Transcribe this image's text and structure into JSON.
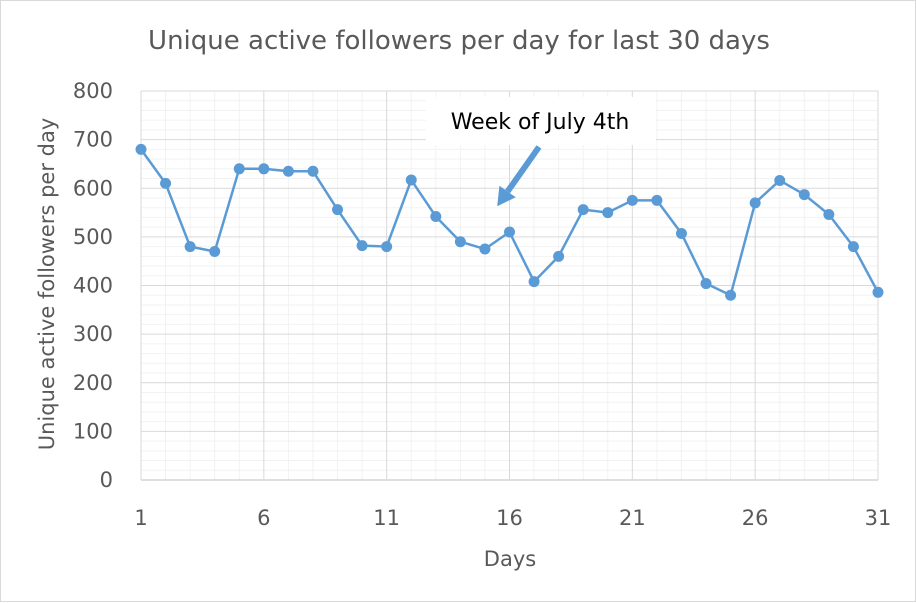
{
  "chart_data": {
    "type": "line",
    "title": "Unique active followers per day for last 30 days",
    "xlabel": "Days",
    "ylabel": "Unique active followers per day",
    "xlim": [
      1,
      31
    ],
    "ylim": [
      0,
      800
    ],
    "x_ticks": [
      1,
      6,
      11,
      16,
      21,
      26,
      31
    ],
    "y_ticks": [
      0,
      100,
      200,
      300,
      400,
      500,
      600,
      700,
      800
    ],
    "y_minor_step": 20,
    "x_minor_step": 1,
    "grid": true,
    "legend": "none",
    "series": [
      {
        "name": "Unique active followers",
        "color": "#5b9bd5",
        "x": [
          1,
          2,
          3,
          4,
          5,
          6,
          7,
          8,
          9,
          10,
          11,
          12,
          13,
          14,
          15,
          16,
          17,
          18,
          19,
          20,
          21,
          22,
          23,
          24,
          25,
          26,
          27,
          28,
          29,
          30,
          31
        ],
        "values": [
          680,
          610,
          480,
          470,
          640,
          640,
          635,
          635,
          556,
          482,
          480,
          617,
          542,
          490,
          475,
          510,
          408,
          460,
          556,
          550,
          575,
          575,
          507,
          404,
          380,
          570,
          616,
          587,
          546,
          480,
          386
        ]
      }
    ],
    "annotations": [
      {
        "text": "Week of July 4th",
        "arrow_target": {
          "x": 15.5,
          "y": 563
        },
        "arrow_start": {
          "x": 17.2,
          "y": 685
        }
      }
    ]
  }
}
